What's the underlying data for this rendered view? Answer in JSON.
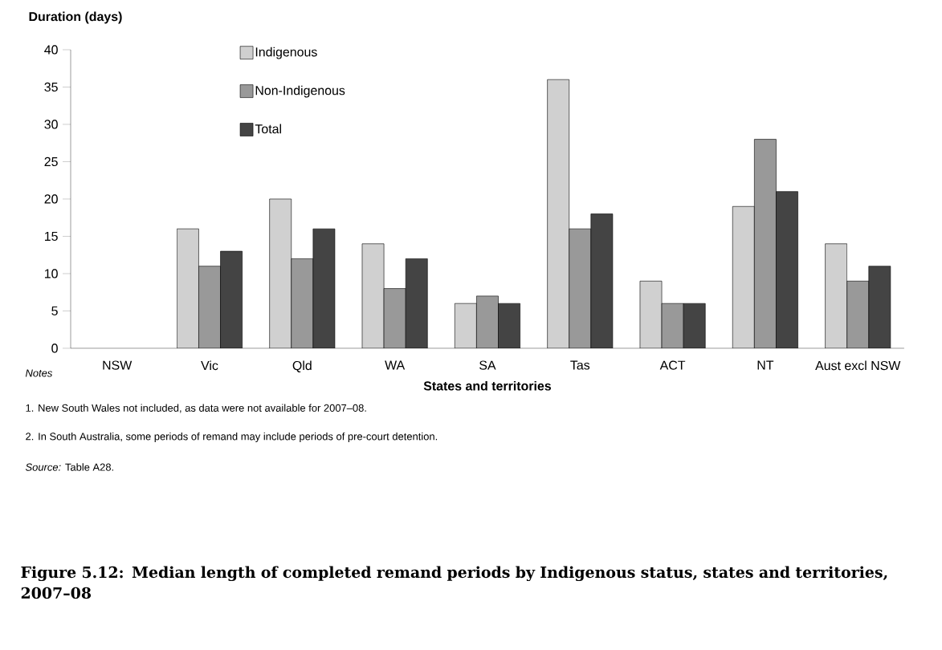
{
  "chart_data": {
    "type": "bar",
    "title": "Figure 5.12: Median length of completed remand periods by Indigenous status, states and territories, 2007–08",
    "xlabel": "States and territories",
    "ylabel": "Duration (days)",
    "categories": [
      "NSW",
      "Vic",
      "Qld",
      "WA",
      "SA",
      "Tas",
      "ACT",
      "NT",
      "Aust excl NSW"
    ],
    "series": [
      {
        "name": "Indigenous",
        "color": "#d0d0d0",
        "values": [
          null,
          16,
          20,
          14,
          6,
          36,
          9,
          19,
          14
        ]
      },
      {
        "name": "Non-Indigenous",
        "color": "#999999",
        "values": [
          null,
          11,
          12,
          8,
          7,
          16,
          6,
          28,
          9
        ]
      },
      {
        "name": "Total",
        "color": "#444444",
        "values": [
          null,
          13,
          16,
          12,
          6,
          18,
          6,
          21,
          11
        ]
      }
    ],
    "ylim": [
      0,
      40
    ],
    "yticks": [
      0,
      5,
      10,
      15,
      20,
      25,
      30,
      35,
      40
    ],
    "grid": false,
    "legend": "top left",
    "annotations": [
      "*Notes*",
      "1. New South Wales not included, as data were not available for 2007–08.",
      "2. In South Australia, some periods of remand may include periods of pre-court detention.",
      "*Source:* Table A28."
    ]
  }
}
